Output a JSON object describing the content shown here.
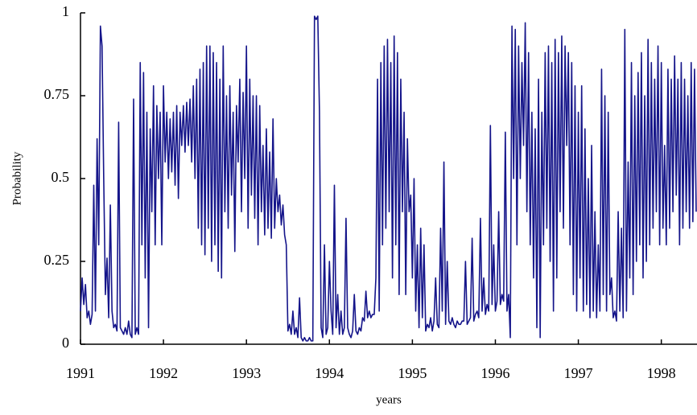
{
  "chart_data": {
    "type": "line",
    "x_label": "years",
    "y_label": "Probability",
    "color": "#15158a",
    "xlim": [
      1991,
      1998.43
    ],
    "ylim": [
      0,
      1
    ],
    "xticks": [
      1991,
      1992,
      1993,
      1994,
      1995,
      1996,
      1997,
      1998
    ],
    "yticks": [
      0,
      0.25,
      0.5,
      0.75,
      1
    ],
    "grid": false,
    "x": [
      1991,
      1991.02,
      1991.04,
      1991.06,
      1991.08,
      1991.1,
      1991.12,
      1991.14,
      1991.16,
      1991.18,
      1991.2,
      1991.22,
      1991.24,
      1991.26,
      1991.28,
      1991.3,
      1991.32,
      1991.34,
      1991.36,
      1991.38,
      1991.4,
      1991.42,
      1991.44,
      1991.46,
      1991.48,
      1991.5,
      1991.52,
      1991.54,
      1991.56,
      1991.58,
      1991.6,
      1991.62,
      1991.64,
      1991.66,
      1991.68,
      1991.7,
      1991.72,
      1991.74,
      1991.76,
      1991.78,
      1991.8,
      1991.82,
      1991.84,
      1991.86,
      1991.88,
      1991.9,
      1991.92,
      1991.94,
      1991.96,
      1991.98,
      1992,
      1992.02,
      1992.04,
      1992.06,
      1992.08,
      1992.1,
      1992.12,
      1992.14,
      1992.16,
      1992.18,
      1992.2,
      1992.22,
      1992.24,
      1992.26,
      1992.28,
      1992.3,
      1992.32,
      1992.34,
      1992.36,
      1992.38,
      1992.4,
      1992.42,
      1992.44,
      1992.46,
      1992.48,
      1992.5,
      1992.52,
      1992.54,
      1992.56,
      1992.58,
      1992.6,
      1992.62,
      1992.64,
      1992.66,
      1992.68,
      1992.7,
      1992.72,
      1992.74,
      1992.76,
      1992.78,
      1992.8,
      1992.82,
      1992.84,
      1992.86,
      1992.88,
      1992.9,
      1992.92,
      1992.94,
      1992.96,
      1992.98,
      1993,
      1993.02,
      1993.04,
      1993.06,
      1993.08,
      1993.1,
      1993.12,
      1993.14,
      1993.16,
      1993.18,
      1993.2,
      1993.22,
      1993.24,
      1993.26,
      1993.28,
      1993.3,
      1993.32,
      1993.34,
      1993.36,
      1993.38,
      1993.4,
      1993.42,
      1993.44,
      1993.46,
      1993.48,
      1993.5,
      1993.52,
      1993.54,
      1993.56,
      1993.58,
      1993.6,
      1993.62,
      1993.64,
      1993.66,
      1993.68,
      1993.7,
      1993.72,
      1993.74,
      1993.76,
      1993.78,
      1993.8,
      1993.82,
      1993.84,
      1993.86,
      1993.88,
      1993.9,
      1993.92,
      1993.94,
      1993.96,
      1993.98,
      1994,
      1994.02,
      1994.04,
      1994.06,
      1994.08,
      1994.1,
      1994.12,
      1994.14,
      1994.16,
      1994.18,
      1994.2,
      1994.22,
      1994.24,
      1994.26,
      1994.28,
      1994.3,
      1994.32,
      1994.34,
      1994.36,
      1994.38,
      1994.4,
      1994.42,
      1994.44,
      1994.46,
      1994.48,
      1994.5,
      1994.52,
      1994.54,
      1994.56,
      1994.58,
      1994.6,
      1994.62,
      1994.64,
      1994.66,
      1994.68,
      1994.7,
      1994.72,
      1994.74,
      1994.76,
      1994.78,
      1994.8,
      1994.82,
      1994.84,
      1994.86,
      1994.88,
      1994.9,
      1994.92,
      1994.94,
      1994.96,
      1994.98,
      1995,
      1995.02,
      1995.04,
      1995.06,
      1995.08,
      1995.1,
      1995.12,
      1995.14,
      1995.16,
      1995.18,
      1995.2,
      1995.22,
      1995.24,
      1995.26,
      1995.28,
      1995.3,
      1995.32,
      1995.34,
      1995.36,
      1995.38,
      1995.4,
      1995.42,
      1995.44,
      1995.46,
      1995.48,
      1995.5,
      1995.52,
      1995.54,
      1995.56,
      1995.58,
      1995.6,
      1995.62,
      1995.64,
      1995.66,
      1995.68,
      1995.7,
      1995.72,
      1995.74,
      1995.76,
      1995.78,
      1995.8,
      1995.82,
      1995.84,
      1995.86,
      1995.88,
      1995.9,
      1995.92,
      1995.94,
      1995.96,
      1995.98,
      1996,
      1996.02,
      1996.04,
      1996.06,
      1996.08,
      1996.1,
      1996.12,
      1996.14,
      1996.16,
      1996.18,
      1996.2,
      1996.22,
      1996.24,
      1996.26,
      1996.28,
      1996.3,
      1996.32,
      1996.34,
      1996.36,
      1996.38,
      1996.4,
      1996.42,
      1996.44,
      1996.46,
      1996.48,
      1996.5,
      1996.52,
      1996.54,
      1996.56,
      1996.58,
      1996.6,
      1996.62,
      1996.64,
      1996.66,
      1996.68,
      1996.7,
      1996.72,
      1996.74,
      1996.76,
      1996.78,
      1996.8,
      1996.82,
      1996.84,
      1996.86,
      1996.88,
      1996.9,
      1996.92,
      1996.94,
      1996.96,
      1996.98,
      1997,
      1997.02,
      1997.04,
      1997.06,
      1997.08,
      1997.1,
      1997.12,
      1997.14,
      1997.16,
      1997.18,
      1997.2,
      1997.22,
      1997.24,
      1997.26,
      1997.28,
      1997.3,
      1997.32,
      1997.34,
      1997.36,
      1997.38,
      1997.4,
      1997.42,
      1997.44,
      1997.46,
      1997.48,
      1997.5,
      1997.52,
      1997.54,
      1997.56,
      1997.58,
      1997.6,
      1997.62,
      1997.64,
      1997.66,
      1997.68,
      1997.7,
      1997.72,
      1997.74,
      1997.76,
      1997.78,
      1997.8,
      1997.82,
      1997.84,
      1997.86,
      1997.88,
      1997.9,
      1997.92,
      1997.94,
      1997.96,
      1997.98,
      1998,
      1998.02,
      1998.04,
      1998.06,
      1998.08,
      1998.1,
      1998.12,
      1998.14,
      1998.16,
      1998.18,
      1998.2,
      1998.22,
      1998.24,
      1998.26,
      1998.28,
      1998.3,
      1998.32,
      1998.34,
      1998.36,
      1998.38,
      1998.4,
      1998.42
    ],
    "values": [
      0.1,
      0.2,
      0.12,
      0.18,
      0.08,
      0.1,
      0.06,
      0.09,
      0.48,
      0.1,
      0.62,
      0.3,
      0.96,
      0.9,
      0.5,
      0.15,
      0.26,
      0.08,
      0.42,
      0.1,
      0.05,
      0.06,
      0.04,
      0.67,
      0.05,
      0.04,
      0.03,
      0.05,
      0.03,
      0.07,
      0.03,
      0.02,
      0.74,
      0.03,
      0.05,
      0.03,
      0.85,
      0.3,
      0.82,
      0.2,
      0.7,
      0.05,
      0.65,
      0.4,
      0.78,
      0.3,
      0.72,
      0.5,
      0.7,
      0.3,
      0.78,
      0.55,
      0.7,
      0.5,
      0.68,
      0.52,
      0.7,
      0.48,
      0.72,
      0.44,
      0.7,
      0.6,
      0.72,
      0.58,
      0.73,
      0.6,
      0.74,
      0.55,
      0.78,
      0.5,
      0.8,
      0.35,
      0.83,
      0.3,
      0.85,
      0.27,
      0.9,
      0.35,
      0.9,
      0.25,
      0.88,
      0.3,
      0.85,
      0.22,
      0.8,
      0.2,
      0.9,
      0.4,
      0.75,
      0.35,
      0.78,
      0.45,
      0.7,
      0.28,
      0.72,
      0.55,
      0.8,
      0.4,
      0.76,
      0.5,
      0.9,
      0.35,
      0.8,
      0.45,
      0.75,
      0.38,
      0.75,
      0.3,
      0.72,
      0.4,
      0.6,
      0.33,
      0.65,
      0.35,
      0.58,
      0.32,
      0.68,
      0.35,
      0.5,
      0.4,
      0.45,
      0.36,
      0.42,
      0.33,
      0.3,
      0.04,
      0.06,
      0.03,
      0.1,
      0.03,
      0.05,
      0.02,
      0.14,
      0.02,
      0.01,
      0.02,
      0.01,
      0.01,
      0.02,
      0.01,
      0.01,
      0.99,
      0.98,
      0.99,
      0.7,
      0.05,
      0.02,
      0.3,
      0.03,
      0.05,
      0.25,
      0.1,
      0.03,
      0.48,
      0.05,
      0.15,
      0.03,
      0.1,
      0.03,
      0.05,
      0.38,
      0.05,
      0.03,
      0.02,
      0.04,
      0.15,
      0.04,
      0.03,
      0.05,
      0.04,
      0.08,
      0.07,
      0.16,
      0.08,
      0.1,
      0.08,
      0.09,
      0.09,
      0.2,
      0.8,
      0.1,
      0.85,
      0.3,
      0.9,
      0.35,
      0.92,
      0.4,
      0.85,
      0.2,
      0.93,
      0.3,
      0.88,
      0.15,
      0.8,
      0.4,
      0.7,
      0.15,
      0.62,
      0.4,
      0.45,
      0.2,
      0.5,
      0.1,
      0.3,
      0.05,
      0.35,
      0.08,
      0.3,
      0.04,
      0.06,
      0.05,
      0.08,
      0.04,
      0.07,
      0.2,
      0.06,
      0.05,
      0.35,
      0.1,
      0.55,
      0.06,
      0.25,
      0.07,
      0.06,
      0.08,
      0.06,
      0.05,
      0.07,
      0.06,
      0.06,
      0.07,
      0.07,
      0.25,
      0.06,
      0.07,
      0.08,
      0.32,
      0.07,
      0.09,
      0.1,
      0.08,
      0.38,
      0.1,
      0.2,
      0.09,
      0.12,
      0.1,
      0.66,
      0.12,
      0.3,
      0.1,
      0.13,
      0.4,
      0.12,
      0.15,
      0.13,
      0.64,
      0.1,
      0.15,
      0.02,
      0.96,
      0.5,
      0.95,
      0.3,
      0.9,
      0.5,
      0.85,
      0.6,
      0.97,
      0.4,
      0.88,
      0.3,
      0.7,
      0.2,
      0.65,
      0.05,
      0.8,
      0.02,
      0.7,
      0.3,
      0.88,
      0.35,
      0.9,
      0.25,
      0.85,
      0.1,
      0.92,
      0.2,
      0.88,
      0.4,
      0.93,
      0.35,
      0.9,
      0.6,
      0.88,
      0.3,
      0.85,
      0.15,
      0.78,
      0.1,
      0.7,
      0.2,
      0.78,
      0.1,
      0.65,
      0.12,
      0.5,
      0.08,
      0.6,
      0.1,
      0.4,
      0.08,
      0.3,
      0.1,
      0.83,
      0.15,
      0.75,
      0.1,
      0.7,
      0.15,
      0.2,
      0.08,
      0.1,
      0.07,
      0.4,
      0.1,
      0.35,
      0.08,
      0.95,
      0.1,
      0.55,
      0.2,
      0.85,
      0.15,
      0.75,
      0.25,
      0.82,
      0.3,
      0.88,
      0.2,
      0.75,
      0.25,
      0.92,
      0.3,
      0.85,
      0.35,
      0.8,
      0.4,
      0.9,
      0.3,
      0.85,
      0.35,
      0.6,
      0.3,
      0.83,
      0.35,
      0.8,
      0.4,
      0.87,
      0.45,
      0.8,
      0.3,
      0.85,
      0.35,
      0.8,
      0.4,
      0.75,
      0.35,
      0.85,
      0.37,
      0.83,
      0.4
    ]
  }
}
